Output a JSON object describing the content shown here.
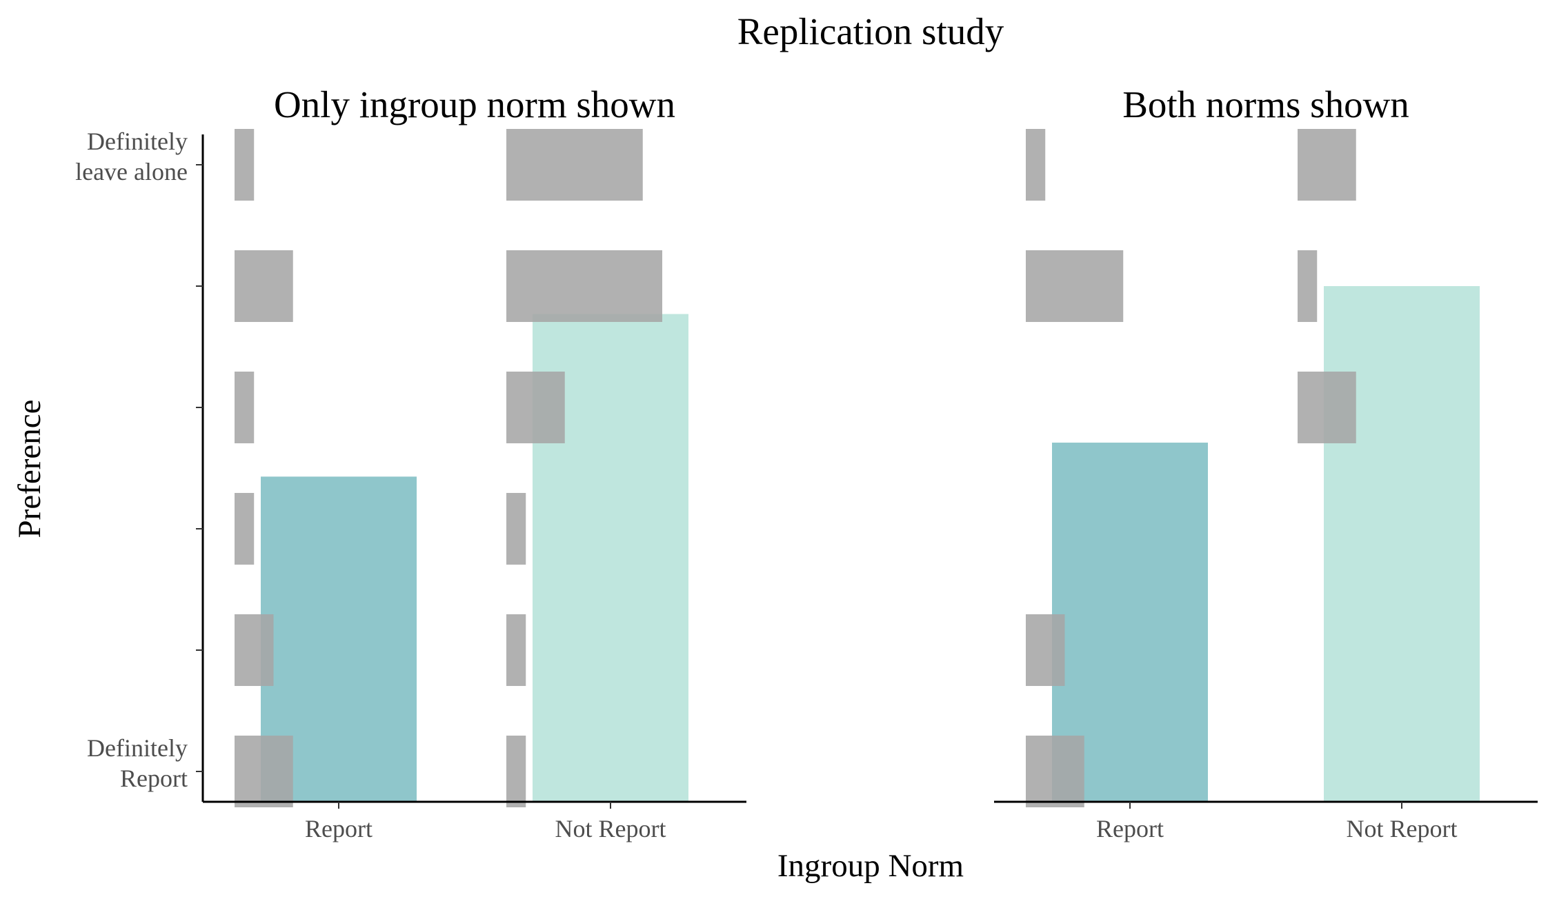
{
  "chart_data": {
    "type": "bar",
    "title": "Replication study",
    "xlabel": "Ingroup Norm",
    "ylabel": "Preference",
    "categories": [
      "Report",
      "Not Report"
    ],
    "ylim": [
      0.75,
      6.25
    ],
    "y_ticks": [
      1,
      2,
      3,
      4,
      5,
      6
    ],
    "y_tick_labels": [
      "Definitely Report",
      "",
      "",
      "",
      "",
      "Definitely leave alone"
    ],
    "y_tick_label_lines": [
      [
        "Definitely",
        "Report"
      ],
      [],
      [],
      [],
      [],
      [
        "Definitely",
        "leave alone"
      ]
    ],
    "grid": false,
    "legend": "none",
    "colors": {
      "Report": "#8fc6cb",
      "Not Report": "#bfe6de",
      "distribution": "#a6a6a6"
    },
    "panels": [
      {
        "title": "Only ingroup norm shown",
        "means": [
          3.43,
          4.77
        ],
        "distribution": [
          {
            "category": "Report",
            "proportions": [
              0.15,
              0.1,
              0.05,
              0.05,
              0.15,
              0.05
            ]
          },
          {
            "category": "Not Report",
            "proportions": [
              0.05,
              0.05,
              0.05,
              0.15,
              0.4,
              0.35
            ]
          }
        ]
      },
      {
        "title": "Both norms shown",
        "means": [
          3.71,
          5.0
        ],
        "distribution": [
          {
            "category": "Report",
            "proportions": [
              0.15,
              0.1,
              0.0,
              0.0,
              0.25,
              0.05
            ]
          },
          {
            "category": "Not Report",
            "proportions": [
              0.0,
              0.0,
              0.0,
              0.15,
              0.05,
              0.15
            ]
          }
        ]
      }
    ]
  }
}
